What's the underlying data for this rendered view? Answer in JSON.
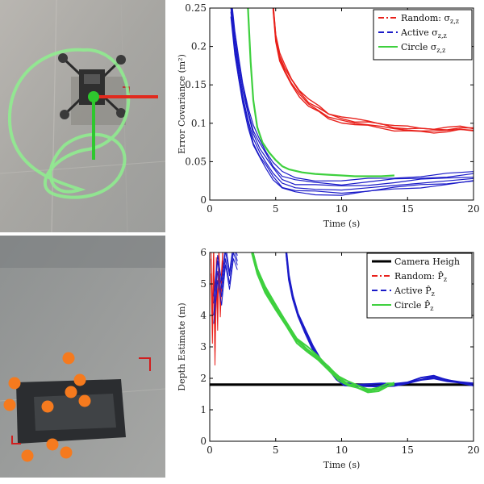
{
  "chart_data": [
    {
      "type": "line",
      "title": "",
      "xlabel": "Time (s)",
      "ylabel": "Error Covariance (m²)",
      "xlim": [
        0,
        20
      ],
      "ylim": [
        0,
        0.25
      ],
      "xticks": [
        0,
        5,
        10,
        15,
        20
      ],
      "yticks": [
        0,
        0.05,
        0.1,
        0.15,
        0.2,
        0.25
      ],
      "xtick_labels": [
        "0",
        "5",
        "10",
        "15",
        "20"
      ],
      "ytick_labels": [
        "0",
        "0.05",
        "0.1",
        "0.15",
        "0.2",
        "0.25"
      ],
      "grid": false,
      "legend_position": "top-right",
      "legend": [
        {
          "label_main": "Random: σ",
          "label_sub": "z,z",
          "color": "#e8201a",
          "dash": "dashdot"
        },
        {
          "label_main": "Active σ",
          "label_sub": "z,z",
          "color": "#1a1ac8",
          "dash": "dash"
        },
        {
          "label_main": "Circle σ",
          "label_sub": "z,z",
          "color": "#3ed03e",
          "dash": "solid"
        }
      ],
      "series": [
        {
          "color": "#e8201a",
          "width": 1.4,
          "offsets": [
            0,
            0.004,
            -0.003,
            0.007
          ],
          "x": [
            4.8,
            5.0,
            5.3,
            5.7,
            6.2,
            6.8,
            7.5,
            8.3,
            9.0,
            10.0,
            11.0,
            12.0,
            13.0,
            14.0,
            15.0,
            16.0,
            17.0,
            18.0,
            19.0,
            20.0
          ],
          "y": [
            0.25,
            0.21,
            0.185,
            0.168,
            0.152,
            0.138,
            0.125,
            0.116,
            0.108,
            0.104,
            0.1,
            0.098,
            0.096,
            0.093,
            0.091,
            0.09,
            0.09,
            0.091,
            0.092,
            0.091
          ]
        },
        {
          "color": "#1a1ac8",
          "width": 1.2,
          "offsets": [
            0,
            0.008,
            -0.006,
            0.014,
            -0.01,
            0.02
          ],
          "x": [
            1.6,
            1.9,
            2.2,
            2.5,
            2.9,
            3.3,
            3.8,
            4.3,
            4.8,
            5.5,
            6.5,
            8.0,
            10.0,
            12.0,
            14.0,
            16.0,
            18.0,
            20.0
          ],
          "y": [
            0.25,
            0.2,
            0.165,
            0.135,
            0.105,
            0.08,
            0.062,
            0.048,
            0.035,
            0.022,
            0.016,
            0.014,
            0.013,
            0.016,
            0.019,
            0.022,
            0.025,
            0.028
          ]
        },
        {
          "color": "#3ed03e",
          "width": 2.2,
          "offsets": [
            0
          ],
          "x": [
            2.9,
            3.1,
            3.3,
            3.6,
            4.0,
            4.5,
            5.0,
            5.5,
            6.0,
            7.0,
            8.0,
            9.0,
            10.0,
            11.0,
            12.0,
            13.0,
            14.0
          ],
          "y": [
            0.25,
            0.18,
            0.13,
            0.095,
            0.075,
            0.062,
            0.052,
            0.044,
            0.04,
            0.036,
            0.034,
            0.033,
            0.032,
            0.031,
            0.031,
            0.031,
            0.032
          ]
        }
      ]
    },
    {
      "type": "line",
      "title": "",
      "xlabel": "Time (s)",
      "ylabel": "Depth Estimate (m)",
      "xlim": [
        0,
        20
      ],
      "ylim": [
        0,
        6
      ],
      "xticks": [
        0,
        5,
        10,
        15,
        20
      ],
      "yticks": [
        0,
        1,
        2,
        3,
        4,
        5,
        6
      ],
      "xtick_labels": [
        "0",
        "5",
        "10",
        "15",
        "20"
      ],
      "ytick_labels": [
        "0",
        "1",
        "2",
        "3",
        "4",
        "5",
        "6"
      ],
      "grid": false,
      "legend_position": "top-right",
      "legend": [
        {
          "label_main": "Camera Heigh",
          "label_sub": "",
          "color": "#000000",
          "dash": "solid"
        },
        {
          "label_main": "Random: P̂",
          "label_sub": "z",
          "color": "#e8201a",
          "dash": "dashdot"
        },
        {
          "label_main": "Active P̂",
          "label_sub": "z",
          "color": "#1a1ac8",
          "dash": "dash"
        },
        {
          "label_main": "Circle P̂",
          "label_sub": "z",
          "color": "#3ed03e",
          "dash": "solid"
        }
      ],
      "series": [
        {
          "color": "#000000",
          "width": 3.2,
          "offsets": [
            0
          ],
          "x": [
            0,
            20
          ],
          "y": [
            1.8,
            1.8
          ]
        },
        {
          "color": "#e8201a",
          "width": 1.0,
          "offsets": [
            0,
            0.4,
            -0.5
          ],
          "x": [
            0.1,
            0.2,
            0.3,
            0.4,
            0.5,
            0.6,
            0.7,
            0.8,
            0.9,
            1.0
          ],
          "y": [
            5.8,
            3.6,
            6.0,
            2.8,
            5.5,
            3.9,
            6.0,
            4.2,
            5.2,
            6.0
          ]
        },
        {
          "color": "#1a1ac8",
          "width": 1.0,
          "offsets": [
            0,
            0.35,
            -0.3,
            0.6
          ],
          "x": [
            0.3,
            0.6,
            0.9,
            1.2,
            1.5,
            1.8,
            2.1
          ],
          "y": [
            4.0,
            5.4,
            4.6,
            5.8,
            5.0,
            6.0,
            5.6
          ]
        },
        {
          "color": "#1a1ac8",
          "width": 2.0,
          "offsets": [
            0,
            0.06,
            -0.05
          ],
          "x": [
            5.8,
            6.0,
            6.3,
            6.7,
            7.2,
            7.8,
            8.4,
            9.0,
            9.6,
            10.2,
            11.0,
            12.0,
            13.0,
            14.0,
            15.0,
            16.0,
            17.0,
            18.0,
            19.0,
            20.0
          ],
          "y": [
            6.0,
            5.2,
            4.6,
            4.0,
            3.5,
            3.0,
            2.6,
            2.3,
            2.0,
            1.85,
            1.78,
            1.75,
            1.78,
            1.82,
            1.85,
            1.95,
            2.05,
            1.95,
            1.85,
            1.78
          ]
        },
        {
          "color": "#3ed03e",
          "width": 2.0,
          "offsets": [
            0,
            0.07,
            -0.06,
            0.12
          ],
          "x": [
            3.2,
            3.6,
            4.2,
            5.0,
            5.8,
            6.6,
            7.4,
            8.2,
            9.0,
            9.8,
            10.5,
            11.2,
            12.0,
            12.8,
            13.5,
            14.0
          ],
          "y": [
            6.0,
            5.4,
            4.8,
            4.2,
            3.7,
            3.2,
            2.9,
            2.6,
            2.3,
            2.0,
            1.8,
            1.7,
            1.6,
            1.65,
            1.75,
            1.8
          ]
        }
      ]
    }
  ]
}
